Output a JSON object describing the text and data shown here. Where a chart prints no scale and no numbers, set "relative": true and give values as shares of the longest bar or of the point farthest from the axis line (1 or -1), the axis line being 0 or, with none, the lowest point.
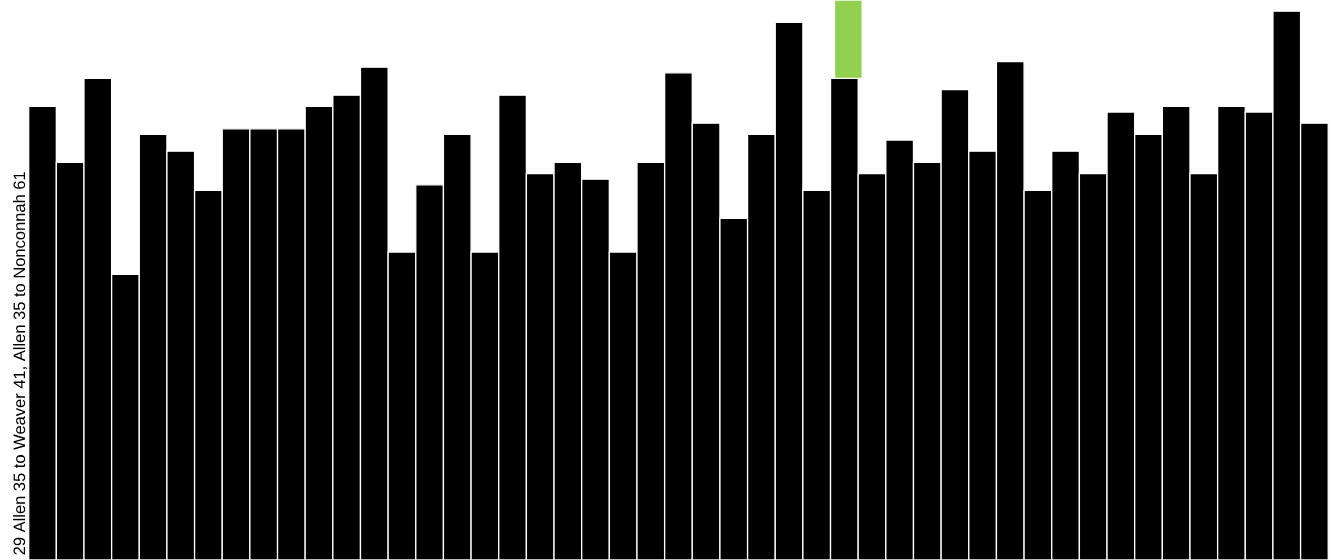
{
  "chart_data": {
    "type": "bar",
    "relative": true,
    "stacked": true,
    "ylabel": "29 Allen 35 to Weaver 41, Allen 35 to Nonconnah 61",
    "categories": [
      null,
      null,
      null,
      null,
      null,
      null,
      null,
      null,
      null,
      null,
      null,
      null,
      null,
      null,
      null,
      null,
      null,
      null,
      null,
      null,
      null,
      null,
      null,
      null,
      null,
      null,
      null,
      null,
      null,
      null,
      null,
      null,
      null,
      null,
      null,
      null,
      null,
      null,
      null,
      null,
      null,
      null,
      null,
      null,
      null,
      null,
      null
    ],
    "series": [
      {
        "color": "#000000",
        "values": [
          0.81,
          0.71,
          0.86,
          0.51,
          0.76,
          0.73,
          0.66,
          0.77,
          0.77,
          0.77,
          0.81,
          0.83,
          0.88,
          0.55,
          0.67,
          0.76,
          0.55,
          0.83,
          0.69,
          0.71,
          0.68,
          0.55,
          0.71,
          0.87,
          0.78,
          0.61,
          0.76,
          0.96,
          0.66,
          0.86,
          0.69,
          0.75,
          0.71,
          0.84,
          0.73,
          0.89,
          0.66,
          0.73,
          0.69,
          0.8,
          0.76,
          0.81,
          0.69,
          0.81,
          0.8,
          0.98,
          0.78
        ]
      },
      {
        "color": "#92d050",
        "values": [
          null,
          null,
          null,
          null,
          null,
          null,
          null,
          null,
          null,
          null,
          null,
          null,
          null,
          null,
          null,
          null,
          null,
          null,
          null,
          null,
          null,
          null,
          null,
          null,
          null,
          null,
          null,
          null,
          null,
          0.14,
          null,
          null,
          null,
          null,
          null,
          null,
          null,
          null,
          null,
          null,
          null,
          null,
          null,
          null,
          null,
          null,
          null
        ]
      }
    ]
  }
}
